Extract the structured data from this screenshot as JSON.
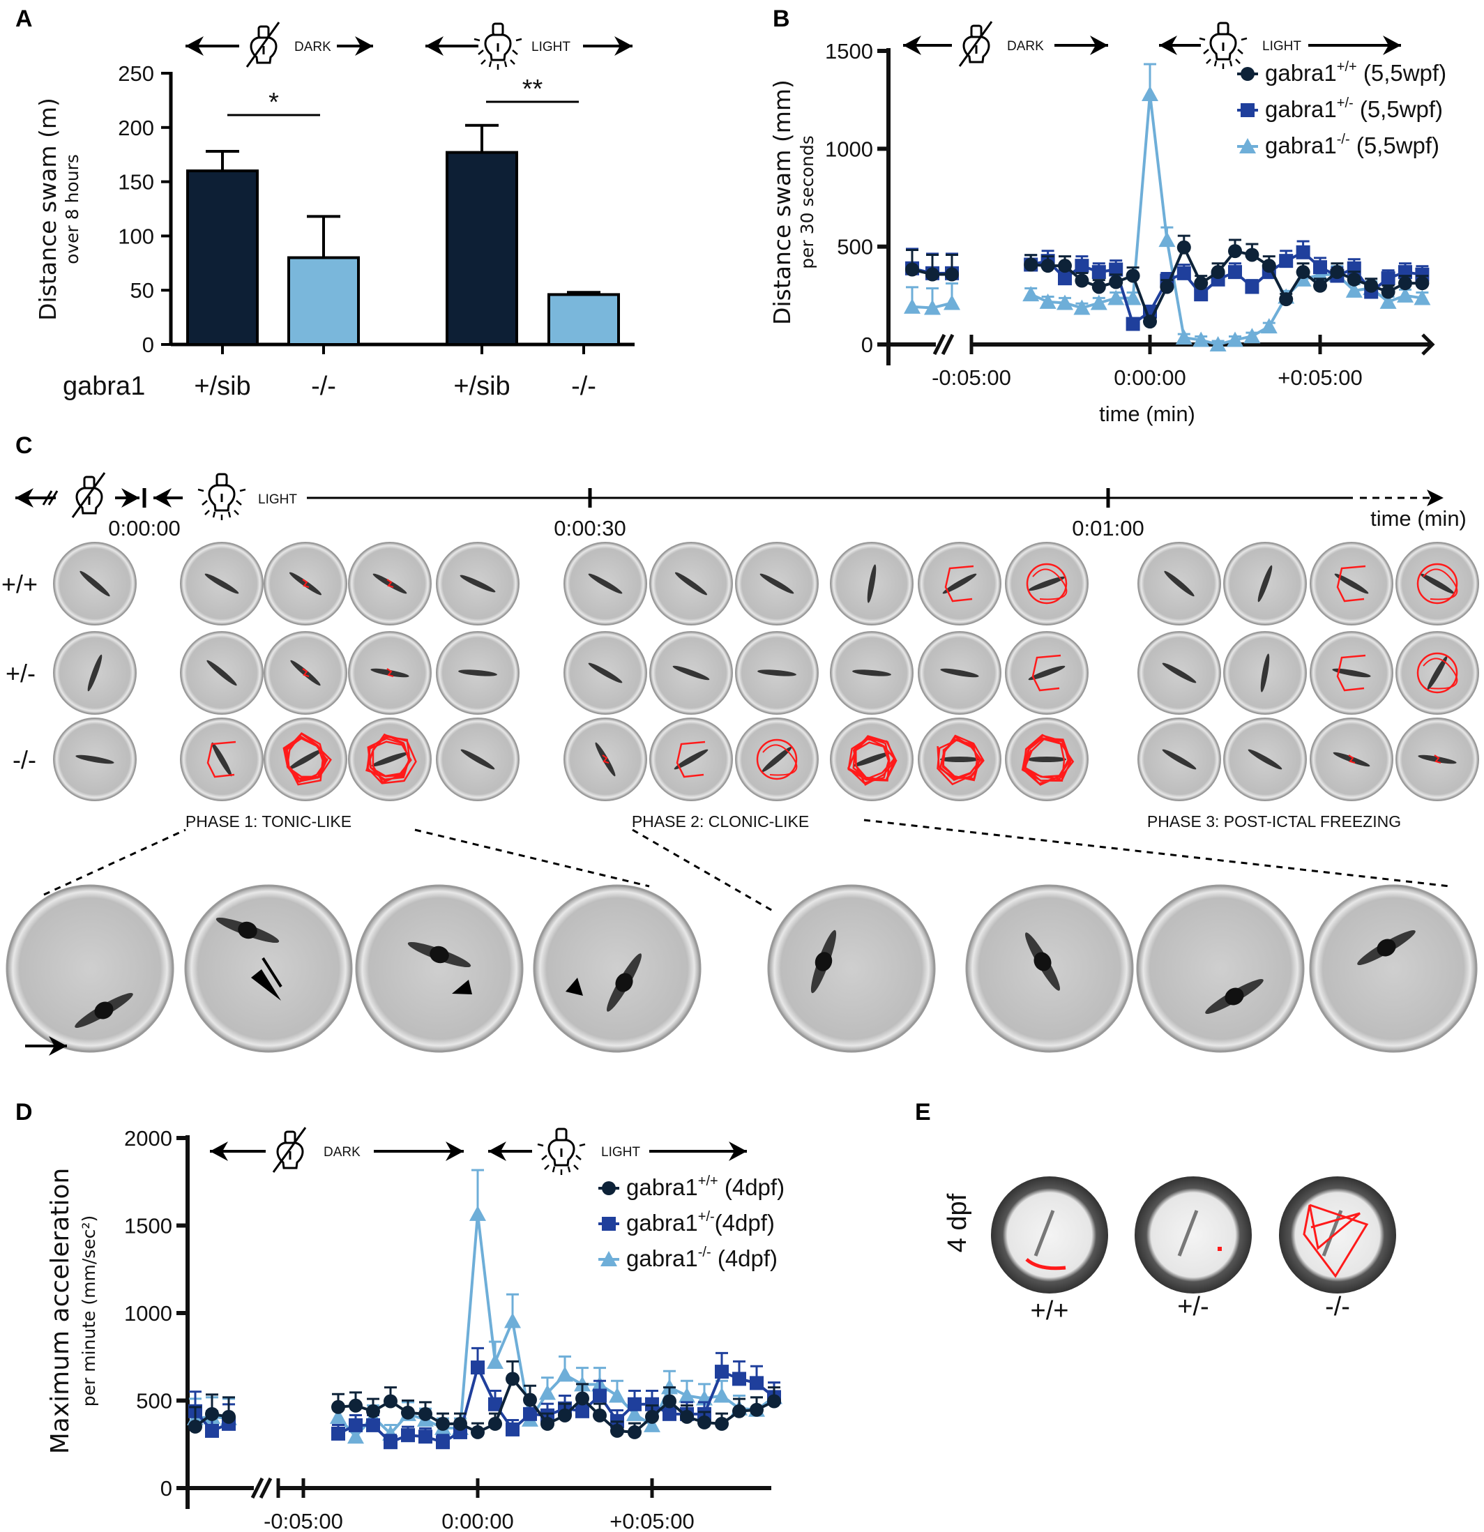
{
  "panels": {
    "a": "A",
    "b": "B",
    "c": "C",
    "d": "D",
    "e": "E"
  },
  "header": {
    "dark": "DARK",
    "light": "LIGHT"
  },
  "colors": {
    "wild_type": "#0d2238",
    "heterozygous": "#1f3f9c",
    "homozygous": "#6eaed8",
    "bar_sib": "#0d1f35",
    "bar_mutant": "#7ab7db",
    "trajectory": "#ff1a1a"
  },
  "chart_data": [
    {
      "panel": "A",
      "type": "bar",
      "xlabel": "gabra1",
      "ylabel": "Distance swam (m)",
      "ylabel_sub": "over 8 hours",
      "ylim": [
        0,
        250
      ],
      "yticks": [
        0,
        50,
        100,
        150,
        200,
        250
      ],
      "groups": [
        "DARK",
        "LIGHT"
      ],
      "categories": [
        "+/sib",
        "-/-",
        "+/sib",
        "-/-"
      ],
      "values": [
        160,
        80,
        177,
        46
      ],
      "errors": [
        18,
        38,
        25,
        2
      ],
      "significance": [
        {
          "label": "*",
          "between": [
            0,
            1
          ]
        },
        {
          "label": "**",
          "between": [
            2,
            3
          ]
        }
      ],
      "grid": false
    },
    {
      "panel": "B",
      "type": "line",
      "xlabel": "time (min)",
      "ylabel": "Distance swam (mm)",
      "ylabel_sub": "per 30 seconds",
      "ylim": [
        0,
        1500
      ],
      "yticks": [
        0,
        500,
        1000,
        1500
      ],
      "xticks": [
        {
          "value": -5,
          "label": "-0:05:00"
        },
        {
          "value": 0,
          "label": "0:00:00"
        },
        {
          "value": 5,
          "label": "+0:05:00"
        }
      ],
      "axis_break": true,
      "legend_position": "top-right",
      "x": [
        -3.5,
        -3,
        -2.5,
        -2,
        -1.5,
        -1,
        -0.5,
        0,
        0.5,
        1,
        1.5,
        2,
        2.5,
        3,
        3.5,
        4,
        4.5,
        5,
        5.5,
        6,
        6.5,
        7,
        7.5,
        8
      ],
      "series": [
        {
          "name": "gabra1",
          "sup": "+/+",
          "suffix": " (5,5wpf)",
          "marker": "circle",
          "pre_break": [
            383,
            358,
            358
          ],
          "values": [
            408,
            402,
            402,
            326,
            294,
            319,
            351,
            117,
            294,
            496,
            313,
            370,
            477,
            458,
            402,
            231,
            370,
            300,
            370,
            332,
            300,
            269,
            313,
            313
          ]
        },
        {
          "name": "gabra1",
          "sup": "+/-",
          "suffix": " (5,5wpf)",
          "marker": "square",
          "pre_break": [
            389,
            364,
            364
          ],
          "values": [
            408,
            427,
            338,
            402,
            370,
            383,
            105,
            168,
            326,
            364,
            256,
            332,
            370,
            294,
            370,
            427,
            471,
            395,
            351,
            389,
            269,
            338,
            370,
            357
          ]
        },
        {
          "name": "gabra1",
          "sup": "-/-",
          "suffix": " (5,5wpf)",
          "marker": "triangle",
          "pre_break": [
            193,
            187,
            212
          ],
          "values": [
            256,
            218,
            212,
            187,
            212,
            237,
            237,
            1279,
            534,
            35,
            23,
            0,
            23,
            42,
            92,
            244,
            332,
            357,
            357,
            275,
            288,
            218,
            250,
            237
          ]
        }
      ],
      "grid": false
    },
    {
      "panel": "D",
      "type": "line",
      "ylabel": "Maximum acceleration",
      "ylabel_sub": "per minute (mm/sec²)",
      "ylim": [
        0,
        2000
      ],
      "yticks": [
        0,
        500,
        1000,
        1500,
        2000
      ],
      "xticks": [
        {
          "value": -5,
          "label": "-0:05:00"
        },
        {
          "value": 0,
          "label": "0:00:00"
        },
        {
          "value": 5,
          "label": "+0:05:00"
        }
      ],
      "axis_break": true,
      "legend_position": "top-right",
      "x": [
        -4,
        -3.5,
        -3,
        -2.5,
        -2,
        -1.5,
        -1,
        -0.5,
        0,
        0.5,
        1,
        1.5,
        2,
        2.5,
        3,
        3.5,
        4,
        4.5,
        5,
        5.5,
        6,
        6.5,
        7,
        7.5,
        8,
        8.5
      ],
      "series": [
        {
          "name": "gabra1",
          "sup": "+/+",
          "suffix": " (4dpf)",
          "marker": "circle",
          "pre_break": [
            351,
            423,
            407
          ],
          "values": [
            463,
            471,
            439,
            496,
            431,
            423,
            367,
            367,
            319,
            367,
            624,
            504,
            367,
            415,
            512,
            415,
            327,
            319,
            407,
            496,
            407,
            375,
            367,
            439,
            447,
            496
          ]
        },
        {
          "name": "gabra1",
          "sup": "+/-",
          "suffix": "(4dpf)",
          "marker": "square",
          "pre_break": [
            439,
            327,
            367
          ],
          "values": [
            311,
            359,
            359,
            262,
            302,
            294,
            262,
            319,
            689,
            479,
            335,
            423,
            415,
            455,
            439,
            528,
            383,
            479,
            479,
            423,
            423,
            423,
            665,
            624,
            600,
            520
          ]
        },
        {
          "name": "gabra1",
          "sup": "-/-",
          "suffix": " (4dpf)",
          "marker": "triangle",
          "pre_break": [
            399,
            407,
            399
          ],
          "values": [
            407,
            294,
            407,
            311,
            423,
            391,
            343,
            343,
            1566,
            721,
            954,
            391,
            544,
            648,
            592,
            592,
            528,
            423,
            359,
            576,
            528,
            512,
            528,
            455,
            447,
            520
          ]
        }
      ],
      "grid": false
    }
  ],
  "panel_c": {
    "time_labels": [
      "0:00:00",
      "0:00:30",
      "0:01:00"
    ],
    "time_axis_label": "time (min)",
    "rows": [
      "+/+",
      "+/-",
      "-/-"
    ],
    "phases": [
      "PHASE 1: TONIC-LIKE",
      "PHASE 2: CLONIC-LIKE",
      "PHASE 3: POST-ICTAL FREEZING"
    ]
  },
  "panel_e": {
    "age_label": "4 dpf",
    "genotypes": [
      "+/+",
      "+/-",
      "-/-"
    ]
  }
}
